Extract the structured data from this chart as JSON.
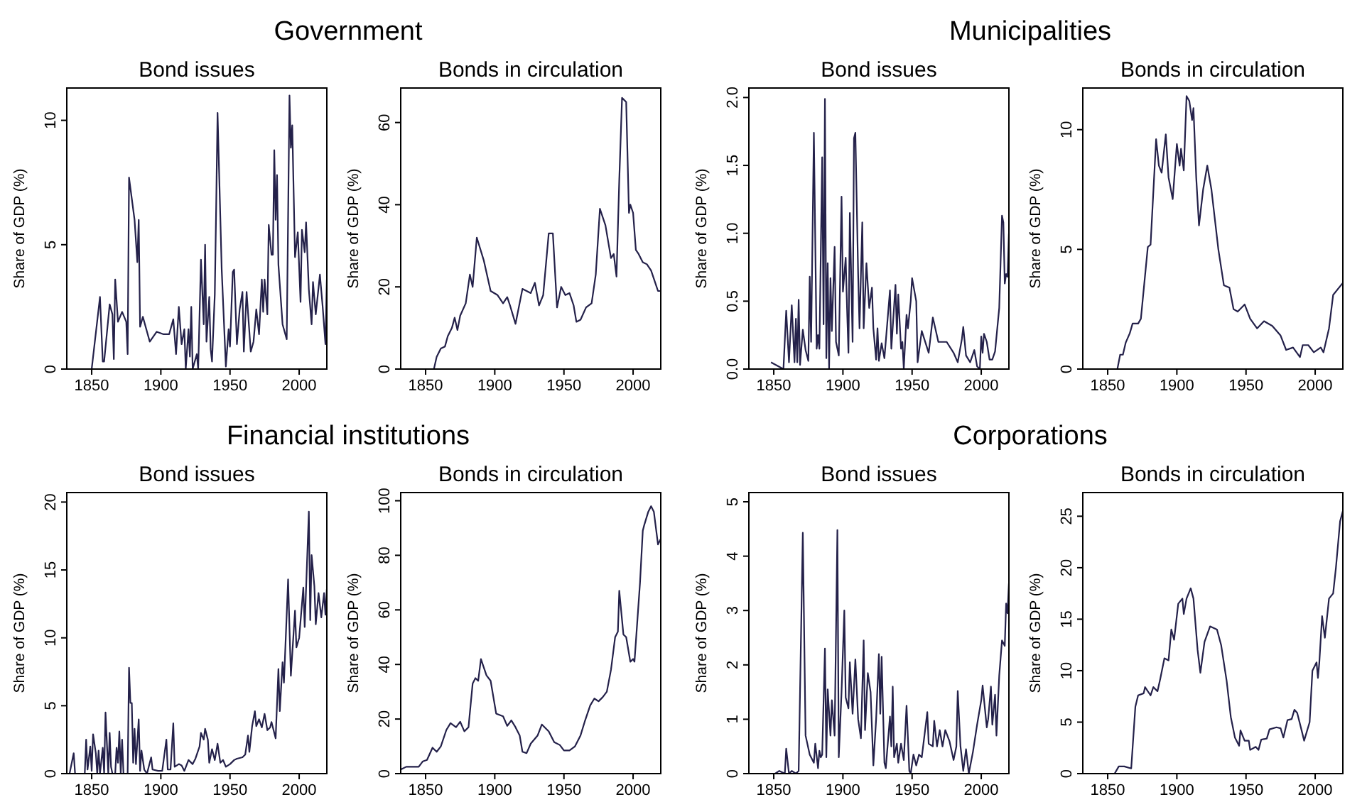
{
  "chart_data": [
    {
      "type": "other",
      "title": "Government"
    },
    {
      "type": "line",
      "title": "Bond issues",
      "ylabel": "Share of GDP (%)",
      "color": "#24214a",
      "xlim": [
        1832,
        2020
      ],
      "ylim": [
        0,
        11.3
      ],
      "xticks": [
        1850,
        1900,
        1950,
        2000
      ],
      "yticks": [
        0,
        5,
        10
      ],
      "x": [
        1850,
        1856,
        1858,
        1859,
        1863,
        1865,
        1866,
        1867,
        1869,
        1872,
        1875,
        1876,
        1877,
        1881,
        1883,
        1884,
        1885,
        1887,
        1892,
        1897,
        1902,
        1906,
        1909,
        1911,
        1913,
        1915,
        1917,
        1918,
        1920,
        1921,
        1922,
        1923,
        1926,
        1927,
        1929,
        1931,
        1932,
        1933,
        1935,
        1936,
        1937,
        1939,
        1940,
        1941,
        1943,
        1944,
        1947,
        1949,
        1950,
        1952,
        1953,
        1955,
        1957,
        1959,
        1960,
        1962,
        1965,
        1967,
        1969,
        1971,
        1973,
        1974,
        1975,
        1977,
        1978,
        1980,
        1981,
        1982,
        1983,
        1984,
        1985,
        1988,
        1991,
        1993,
        1994,
        1995,
        1997,
        1999,
        2001,
        2002,
        2004,
        2005,
        2007,
        2009,
        2010,
        2012,
        2015,
        2017,
        2019,
        2020
      ],
      "values": [
        0,
        2.9,
        0.3,
        0.3,
        2.6,
        2.2,
        0.4,
        3.6,
        1.9,
        2.3,
        1.9,
        0.6,
        7.7,
        6.0,
        4.3,
        6.0,
        1.7,
        2.1,
        1.1,
        1.5,
        1.4,
        1.4,
        2.0,
        0.6,
        2.5,
        1.0,
        1.6,
        0,
        1.6,
        0.5,
        2.5,
        0,
        0.6,
        0,
        4.4,
        1.8,
        5.0,
        1.1,
        2.9,
        0.8,
        0.3,
        3.0,
        6.5,
        10.3,
        6.1,
        4.0,
        0.1,
        1.6,
        0.9,
        3.9,
        4.0,
        1.0,
        2.4,
        3.1,
        0.7,
        3.1,
        0.7,
        1.1,
        2.4,
        1.4,
        3.6,
        2.3,
        3.6,
        2.2,
        5.8,
        4.6,
        4.6,
        8.8,
        6.0,
        7.8,
        4.2,
        1.8,
        1.2,
        11.0,
        8.9,
        9.8,
        4.5,
        5.5,
        2.7,
        5.6,
        4.7,
        5.9,
        3.2,
        1.8,
        3.5,
        2.2,
        3.8,
        2.5,
        1.0,
        3.6
      ]
    },
    {
      "type": "line",
      "title": "Bonds in circulation",
      "ylabel": "Share of GDP (%)",
      "color": "#24214a",
      "xlim": [
        1832,
        2020
      ],
      "ylim": [
        0,
        68.4
      ],
      "xticks": [
        1850,
        1900,
        1950,
        2000
      ],
      "yticks": [
        0,
        20,
        40,
        60
      ],
      "x": [
        1856,
        1858,
        1861,
        1864,
        1866,
        1869,
        1871,
        1873,
        1875,
        1879,
        1882,
        1884,
        1887,
        1892,
        1897,
        1902,
        1906,
        1909,
        1911,
        1915,
        1920,
        1926,
        1929,
        1932,
        1935,
        1939,
        1942,
        1945,
        1948,
        1951,
        1954,
        1957,
        1959,
        1962,
        1966,
        1970,
        1973,
        1976,
        1980,
        1984,
        1986,
        1988,
        1990,
        1992,
        1995,
        1997,
        1998,
        2000,
        2002,
        2004,
        2007,
        2010,
        2013,
        2016,
        2018,
        2020
      ],
      "values": [
        0,
        3,
        5,
        5.5,
        8,
        10,
        12.5,
        9.5,
        13,
        16,
        23,
        20,
        32,
        26.5,
        19,
        18,
        16,
        17.5,
        15.5,
        11,
        19.5,
        18.5,
        21,
        15.5,
        18,
        33,
        33,
        15,
        20,
        18,
        18.5,
        15.5,
        11.5,
        12,
        15,
        16,
        23,
        39,
        35,
        27,
        28,
        22.5,
        46,
        66,
        65,
        38,
        40,
        38,
        29,
        28,
        26,
        25.5,
        24,
        21,
        19,
        19
      ]
    },
    {
      "type": "other",
      "title": "Municipalities"
    },
    {
      "type": "line",
      "title": "Bond issues",
      "ylabel": "Share of GDP (%)",
      "color": "#24214a",
      "xlim": [
        1832,
        2020
      ],
      "ylim": [
        0,
        2.07
      ],
      "xticks": [
        1850,
        1900,
        1950,
        2000
      ],
      "yticks": [
        {
          "value": 0,
          "label": "0.0"
        },
        {
          "value": 0.5,
          "label": "0.5"
        },
        {
          "value": 1,
          "label": "1.0"
        },
        {
          "value": 1.5,
          "label": "1.5"
        },
        {
          "value": 2,
          "label": "2.0"
        }
      ],
      "x": [
        1848,
        1857,
        1859,
        1861,
        1863,
        1865,
        1866,
        1867,
        1868,
        1869,
        1871,
        1873,
        1875,
        1876,
        1877,
        1879,
        1881,
        1882,
        1883,
        1885,
        1886,
        1887,
        1888,
        1889,
        1890,
        1891,
        1892,
        1894,
        1895,
        1897,
        1899,
        1900,
        1902,
        1903,
        1904,
        1905,
        1907,
        1908,
        1909,
        1911,
        1912,
        1914,
        1915,
        1917,
        1919,
        1921,
        1922,
        1924,
        1925,
        1926,
        1928,
        1930,
        1934,
        1935,
        1938,
        1939,
        1940,
        1942,
        1943,
        1944,
        1946,
        1947,
        1949,
        1950,
        1953,
        1954,
        1957,
        1962,
        1965,
        1969,
        1975,
        1980,
        1983,
        1986,
        1987,
        1989,
        1992,
        1995,
        1997,
        1999,
        2000,
        2001,
        2002,
        2004,
        2006,
        2008,
        2010,
        2013,
        2015,
        2016,
        2017,
        2018,
        2019,
        2020
      ],
      "values": [
        0.05,
        0,
        0.43,
        0.05,
        0.47,
        0.05,
        0.37,
        0.05,
        0.51,
        0.03,
        0.29,
        0.14,
        0.06,
        0.68,
        0.2,
        1.74,
        0.15,
        0.25,
        0.15,
        1.56,
        0.33,
        1.99,
        0.08,
        0.78,
        0,
        0.67,
        0.28,
        0.9,
        0.2,
        0.1,
        1.27,
        0.57,
        0.82,
        0.44,
        0.12,
        1.15,
        0.2,
        1.7,
        1.74,
        0.7,
        0.3,
        1.08,
        0.3,
        0.78,
        0.45,
        0.6,
        0.3,
        0.07,
        0.3,
        0.06,
        0.19,
        0.08,
        0.58,
        0.15,
        0.62,
        0.26,
        0.55,
        0.15,
        0.2,
        0,
        0.4,
        0.3,
        0.5,
        0.67,
        0.5,
        0.05,
        0.28,
        0.12,
        0.38,
        0.2,
        0.2,
        0.12,
        0.05,
        0.22,
        0.31,
        0.1,
        0.05,
        0.14,
        0.02,
        0,
        0.24,
        0.12,
        0.26,
        0.2,
        0.07,
        0.07,
        0.13,
        0.45,
        1.13,
        1.08,
        0.63,
        0.7,
        0.68,
        1.0
      ]
    },
    {
      "type": "line",
      "title": "Bonds in circulation",
      "ylabel": "Share of GDP (%)",
      "color": "#24214a",
      "xlim": [
        1832,
        2020
      ],
      "ylim": [
        0,
        11.74
      ],
      "xticks": [
        1850,
        1900,
        1950,
        2000
      ],
      "yticks": [
        0,
        5,
        10
      ],
      "x": [
        1857,
        1859,
        1861,
        1863,
        1866,
        1868,
        1872,
        1874,
        1876,
        1879,
        1881,
        1885,
        1887,
        1889,
        1892,
        1894,
        1897,
        1900,
        1902,
        1903,
        1905,
        1907,
        1909,
        1911,
        1912,
        1914,
        1916,
        1919,
        1922,
        1925,
        1930,
        1934,
        1938,
        1941,
        1944,
        1949,
        1953,
        1958,
        1963,
        1969,
        1975,
        1979,
        1984,
        1989,
        1991,
        1995,
        1999,
        2004,
        2006,
        2010,
        2013,
        2020
      ],
      "values": [
        0,
        0.6,
        0.6,
        1.1,
        1.5,
        1.9,
        1.9,
        2.1,
        3.3,
        5.1,
        5.2,
        9.6,
        8.5,
        8.2,
        9.8,
        8.0,
        7.1,
        9.4,
        8.5,
        9.2,
        8.3,
        11.4,
        11.2,
        10.4,
        10.9,
        8.0,
        6.0,
        7.5,
        8.5,
        7.5,
        5.0,
        3.5,
        3.4,
        2.5,
        2.4,
        2.7,
        2.1,
        1.7,
        2.0,
        1.8,
        1.4,
        0.8,
        0.9,
        0.5,
        1.0,
        1.0,
        0.7,
        0.9,
        0.7,
        1.7,
        3.1,
        3.6
      ]
    },
    {
      "type": "other",
      "title": "Financial institutions"
    },
    {
      "type": "line",
      "title": "Bond issues",
      "ylabel": "Share of GDP (%)",
      "color": "#24214a",
      "xlim": [
        1832,
        2020
      ],
      "ylim": [
        0,
        20.7
      ],
      "xticks": [
        1850,
        1900,
        1950,
        2000
      ],
      "yticks": [
        0,
        5,
        10,
        15,
        20
      ],
      "x": [
        1834,
        1837,
        1838,
        1845,
        1846,
        1847,
        1849,
        1850,
        1851,
        1853,
        1854,
        1855,
        1856,
        1858,
        1859,
        1860,
        1862,
        1863,
        1864,
        1865,
        1867,
        1868,
        1869,
        1870,
        1871,
        1872,
        1873,
        1876,
        1877,
        1878,
        1879,
        1880,
        1881,
        1882,
        1884,
        1885,
        1886,
        1888,
        1890,
        1893,
        1894,
        1898,
        1901,
        1904,
        1905,
        1907,
        1909,
        1910,
        1913,
        1915,
        1917,
        1920,
        1923,
        1925,
        1928,
        1929,
        1931,
        1932,
        1934,
        1935,
        1937,
        1939,
        1941,
        1943,
        1945,
        1947,
        1950,
        1953,
        1955,
        1959,
        1961,
        1963,
        1964,
        1966,
        1968,
        1969,
        1971,
        1973,
        1975,
        1977,
        1979,
        1980,
        1983,
        1985,
        1986,
        1988,
        1989,
        1992,
        1994,
        1997,
        1998,
        2000,
        2003,
        2004,
        2007,
        2008,
        2009,
        2011,
        2012,
        2014,
        2016,
        2018,
        2019,
        2020
      ],
      "values": [
        0,
        1.5,
        0,
        0,
        2.5,
        0.3,
        2.0,
        0.2,
        2.9,
        1.5,
        0,
        1.7,
        0,
        1.9,
        0,
        4.5,
        0,
        3.0,
        0.5,
        0,
        0,
        1.9,
        0.8,
        3.1,
        0,
        2.5,
        0,
        0,
        7.8,
        5.2,
        5.2,
        0.8,
        3.3,
        0.7,
        4.0,
        0.2,
        1.7,
        0.3,
        0,
        1.2,
        0.3,
        0.2,
        0.2,
        2.5,
        0.3,
        0.3,
        3.7,
        0.5,
        0.7,
        0.6,
        0.2,
        1.0,
        0.7,
        1.1,
        2.0,
        3.0,
        2.5,
        3.3,
        2.5,
        0.8,
        1.8,
        1.0,
        2.2,
        0.8,
        1.0,
        0.5,
        0.7,
        1.0,
        1.1,
        1.2,
        1.4,
        2.8,
        1.6,
        3.5,
        4.6,
        3.5,
        4.0,
        3.4,
        4.4,
        3.2,
        3.4,
        3.8,
        2.6,
        7.7,
        4.6,
        8.2,
        6.7,
        14.3,
        7.2,
        12.0,
        9.3,
        10.0,
        13.7,
        10.8,
        19.3,
        11.3,
        16.1,
        13.8,
        11.0,
        13.3,
        11.5,
        13.3,
        11.7,
        13.6
      ]
    },
    {
      "type": "line",
      "title": "Bonds in circulation",
      "ylabel": "Share of GDP (%)",
      "color": "#24214a",
      "xlim": [
        1832,
        2020
      ],
      "ylim": [
        0,
        103
      ],
      "xticks": [
        1850,
        1900,
        1950,
        2000
      ],
      "yticks": [
        0,
        20,
        40,
        60,
        80,
        100
      ],
      "x": [
        1832,
        1836,
        1845,
        1848,
        1851,
        1855,
        1858,
        1861,
        1865,
        1868,
        1872,
        1875,
        1878,
        1881,
        1884,
        1886,
        1888,
        1890,
        1894,
        1897,
        1901,
        1906,
        1909,
        1912,
        1915,
        1918,
        1920,
        1923,
        1926,
        1931,
        1934,
        1939,
        1943,
        1947,
        1950,
        1954,
        1958,
        1962,
        1965,
        1969,
        1972,
        1975,
        1978,
        1981,
        1984,
        1987,
        1989,
        1990,
        1993,
        1995,
        1998,
        2000,
        2001,
        2005,
        2007,
        2008,
        2011,
        2013,
        2015,
        2018,
        2020
      ],
      "values": [
        1.5,
        2.5,
        2.5,
        4.5,
        5,
        9.5,
        8,
        10,
        16,
        18.5,
        17,
        19,
        15.5,
        17,
        33,
        35,
        34,
        42,
        36,
        34,
        22,
        21,
        17.5,
        19.5,
        17,
        14,
        8,
        7.5,
        11,
        14,
        18,
        15.5,
        11.5,
        10.5,
        8.5,
        8.5,
        10,
        14,
        19,
        25,
        27.5,
        26.5,
        28,
        30,
        38,
        50,
        52,
        67,
        51,
        50,
        41,
        42,
        41,
        70,
        89,
        91,
        96,
        98,
        96,
        84,
        86
      ]
    },
    {
      "type": "other",
      "title": "Corporations"
    },
    {
      "type": "line",
      "title": "Bond issues",
      "ylabel": "Share of GDP (%)",
      "color": "#24214a",
      "xlim": [
        1832,
        2020
      ],
      "ylim": [
        0,
        5.17
      ],
      "xticks": [
        1850,
        1900,
        1950,
        2000
      ],
      "yticks": [
        0,
        1,
        2,
        3,
        4,
        5
      ],
      "x": [
        1851,
        1854,
        1858,
        1859,
        1861,
        1863,
        1866,
        1868,
        1871,
        1873,
        1876,
        1879,
        1880,
        1882,
        1883,
        1884,
        1885,
        1887,
        1888,
        1889,
        1891,
        1892,
        1894,
        1896,
        1897,
        1899,
        1901,
        1902,
        1904,
        1905,
        1907,
        1909,
        1911,
        1913,
        1915,
        1916,
        1918,
        1920,
        1922,
        1924,
        1926,
        1927,
        1928,
        1930,
        1931,
        1934,
        1935,
        1936,
        1937,
        1939,
        1940,
        1942,
        1944,
        1946,
        1948,
        1949,
        1951,
        1953,
        1955,
        1957,
        1961,
        1962,
        1965,
        1966,
        1968,
        1970,
        1972,
        1974,
        1977,
        1980,
        1982,
        1983,
        1985,
        1987,
        1989,
        1991,
        1994,
        1997,
        2000,
        2001,
        2004,
        2005,
        2007,
        2008,
        2010,
        2011,
        2013,
        2015,
        2017,
        2018,
        2019,
        2020
      ],
      "values": [
        0,
        0.05,
        0,
        0.46,
        0,
        0.05,
        0,
        0.05,
        4.43,
        0.7,
        0.35,
        0.2,
        0.55,
        0.1,
        0.42,
        0.3,
        0.35,
        2.3,
        0.3,
        1.55,
        0.7,
        1.35,
        0.7,
        4.48,
        0.3,
        1.5,
        3.0,
        1.4,
        1.2,
        2.05,
        1.1,
        2.1,
        1.0,
        0.65,
        2.45,
        0.8,
        1.85,
        1.5,
        0.15,
        1.0,
        2.2,
        1.1,
        2.15,
        0.2,
        0.1,
        1.05,
        0.5,
        1.6,
        0.3,
        0.55,
        0.2,
        0.55,
        0.25,
        1.25,
        0.05,
        0,
        0.35,
        0.15,
        0.35,
        0.3,
        1.13,
        0.55,
        0.5,
        0.97,
        0.5,
        0.8,
        0.5,
        0.8,
        0.6,
        0.25,
        0.5,
        1.52,
        0.5,
        0.05,
        0.45,
        0,
        0.4,
        0.9,
        1.35,
        1.62,
        0.85,
        1.0,
        1.6,
        0.9,
        1.45,
        0.7,
        1.8,
        2.45,
        2.35,
        3.13,
        2.95,
        3.5
      ]
    },
    {
      "type": "line",
      "title": "Bonds in circulation",
      "ylabel": "Share of GDP (%)",
      "color": "#24214a",
      "xlim": [
        1832,
        2020
      ],
      "ylim": [
        0,
        27.3
      ],
      "xticks": [
        1850,
        1900,
        1950,
        2000
      ],
      "yticks": [
        0,
        5,
        10,
        15,
        20,
        25
      ],
      "x": [
        1855,
        1858,
        1862,
        1867,
        1870,
        1872,
        1876,
        1877,
        1881,
        1883,
        1886,
        1888,
        1891,
        1894,
        1896,
        1898,
        1901,
        1904,
        1905,
        1907,
        1910,
        1912,
        1915,
        1917,
        1920,
        1924,
        1929,
        1932,
        1936,
        1939,
        1942,
        1945,
        1946,
        1949,
        1952,
        1953,
        1957,
        1959,
        1961,
        1965,
        1967,
        1972,
        1975,
        1977,
        1980,
        1983,
        1985,
        1987,
        1990,
        1992,
        1996,
        1998,
        2001,
        2002,
        2003,
        2005,
        2007,
        2010,
        2013,
        2015,
        2018,
        2020
      ],
      "values": [
        0,
        0.7,
        0.7,
        0.5,
        6.5,
        7.6,
        7.8,
        8.4,
        7.6,
        8.4,
        8.0,
        9.2,
        11.2,
        11.0,
        14.0,
        13.0,
        16.5,
        17.0,
        15.5,
        17.0,
        18.0,
        17.0,
        12.0,
        9.8,
        12.8,
        14.3,
        14.0,
        12.5,
        9.0,
        5.5,
        3.5,
        2.7,
        4.2,
        3.2,
        3.2,
        2.3,
        2.6,
        2.3,
        3.3,
        3.4,
        4.3,
        4.5,
        4.4,
        3.5,
        5.2,
        5.3,
        6.2,
        5.9,
        4.3,
        3.2,
        5.0,
        10.0,
        10.8,
        9.3,
        10.8,
        15.3,
        13.2,
        17.0,
        17.5,
        20.0,
        24.5,
        25.5
      ]
    }
  ]
}
